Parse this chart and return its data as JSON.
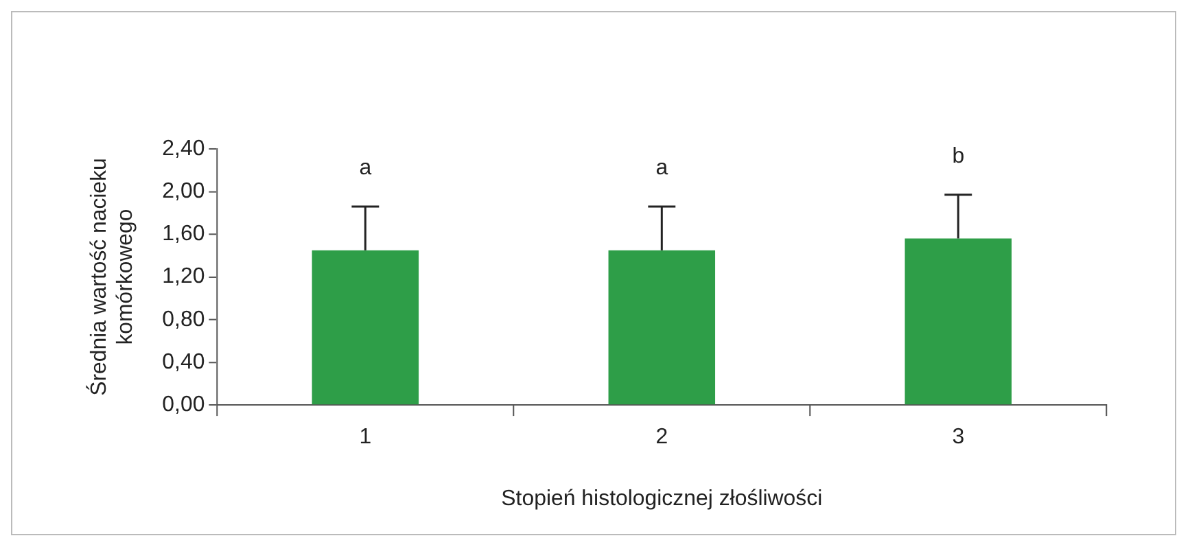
{
  "chart_data": {
    "type": "bar",
    "xlabel": "Stopień histologicznej złośliwości",
    "ylabel": "Średnia wartość nacieku komórkowego",
    "categories": [
      "1",
      "2",
      "3"
    ],
    "values": [
      1.45,
      1.45,
      1.56
    ],
    "errors": [
      [
        1.45,
        1.86
      ],
      [
        1.45,
        1.86
      ],
      [
        1.56,
        1.97
      ]
    ],
    "color": "#2e9e48",
    "ylim": [
      0,
      2.4
    ],
    "yticks": [
      {
        "value": 0,
        "label": "0,00"
      },
      {
        "value": 0.4,
        "label": "0,40"
      },
      {
        "value": 0.8,
        "label": "0,80"
      },
      {
        "value": 1.2,
        "label": "1,20"
      },
      {
        "value": 1.6,
        "label": "1,60"
      },
      {
        "value": 2.0,
        "label": "2,00"
      },
      {
        "value": 2.4,
        "label": "2,40"
      }
    ],
    "annotations": [
      "a",
      "a",
      "b"
    ],
    "grid": false,
    "legend": false
  }
}
